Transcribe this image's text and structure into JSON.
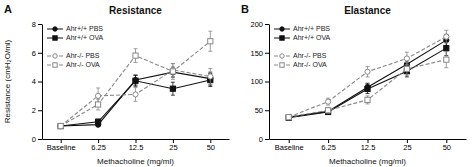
{
  "chart_data": [
    {
      "type": "line",
      "title": "Resistance",
      "annotations": [
        "A"
      ],
      "x_label": "Methacholine (mg/ml)",
      "y_label": "Resistance (cmH₂O/ml)",
      "categories": [
        "Baseline",
        "6.25",
        "12.5",
        "25",
        "50"
      ],
      "ylim": [
        0,
        8
      ],
      "yticks": [
        0,
        2,
        4,
        6,
        8
      ],
      "grid": false,
      "legend": "upper left",
      "series": [
        {
          "name": "Ahr+/+ PBS",
          "color": "#111111",
          "marker": "circle",
          "line_style": "solid",
          "values": [
            0.9,
            1.0,
            4.1,
            4.65,
            4.2
          ],
          "errors": [
            0.08,
            0.12,
            0.35,
            0.35,
            0.45
          ]
        },
        {
          "name": "Ahr+/+ OVA",
          "color": "#111111",
          "marker": "square",
          "line_style": "solid",
          "values": [
            0.9,
            1.2,
            4.05,
            3.5,
            4.1
          ],
          "errors": [
            0.08,
            0.18,
            0.38,
            0.45,
            0.45
          ]
        },
        {
          "name": "Ahr-/- PBS",
          "color": "#888888",
          "marker": "circle-open",
          "line_style": "dashed",
          "values": [
            0.9,
            3.0,
            3.1,
            4.8,
            4.35
          ],
          "errors": [
            0.08,
            0.55,
            0.48,
            0.45,
            0.55
          ]
        },
        {
          "name": "Ahr-/- OVA",
          "color": "#888888",
          "marker": "square-open",
          "line_style": "dashed",
          "values": [
            0.9,
            2.4,
            5.8,
            4.7,
            6.8
          ],
          "errors": [
            0.08,
            0.38,
            0.48,
            0.55,
            0.7
          ]
        }
      ]
    },
    {
      "type": "line",
      "title": "Elastance",
      "annotations": [
        "B"
      ],
      "x_label": "Methacholine (mg/ml)",
      "categories": [
        "Baseline",
        "6.25",
        "12.5",
        "25",
        "50"
      ],
      "ylim": [
        0,
        200
      ],
      "yticks": [
        0,
        50,
        100,
        150,
        200
      ],
      "grid": false,
      "legend": "upper left",
      "series": [
        {
          "name": "Ahr+/+ PBS",
          "color": "#111111",
          "marker": "circle",
          "line_style": "solid",
          "values": [
            38,
            48,
            90,
            130,
            172
          ],
          "errors": [
            3,
            4,
            7,
            9,
            10
          ]
        },
        {
          "name": "Ahr+/+ OVA",
          "color": "#111111",
          "marker": "square",
          "line_style": "solid",
          "values": [
            37,
            47,
            87,
            118,
            158
          ],
          "errors": [
            3,
            4,
            8,
            10,
            13
          ]
        },
        {
          "name": "Ahr-/- PBS",
          "color": "#888888",
          "marker": "circle-open",
          "line_style": "dashed",
          "values": [
            38,
            65,
            117,
            140,
            178
          ],
          "errors": [
            3,
            6,
            9,
            11,
            11
          ]
        },
        {
          "name": "Ahr-/- OVA",
          "color": "#888888",
          "marker": "square-open",
          "line_style": "dashed",
          "values": [
            38,
            50,
            68,
            122,
            138
          ],
          "errors": [
            3,
            5,
            7,
            11,
            14
          ]
        }
      ]
    }
  ]
}
